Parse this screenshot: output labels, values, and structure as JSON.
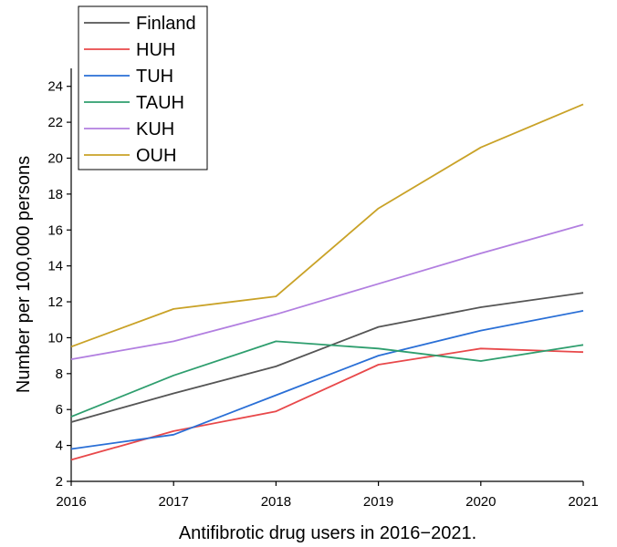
{
  "chart_data": {
    "type": "line",
    "title": "",
    "xlabel": "Antifibrotic drug users in 2016−2021.",
    "ylabel": "Number per 100,000 persons",
    "x": [
      2016,
      2017,
      2018,
      2019,
      2020,
      2021
    ],
    "x_tick_labels": [
      "2016",
      "2017",
      "2018",
      "2019",
      "2020",
      "2021"
    ],
    "y_ticks": [
      2,
      4,
      6,
      8,
      10,
      12,
      14,
      16,
      18,
      20,
      22,
      24
    ],
    "y_tick_labels": [
      "2",
      "4",
      "6",
      "8",
      "10",
      "12",
      "14",
      "16",
      "18",
      "20",
      "22",
      "24"
    ],
    "xlim": [
      2016,
      2021
    ],
    "ylim": [
      2,
      25
    ],
    "grid": false,
    "legend_position": "top-left",
    "series": [
      {
        "name": "Finland",
        "color": "#555555",
        "values": [
          5.3,
          6.9,
          8.4,
          10.6,
          11.7,
          12.5
        ]
      },
      {
        "name": "HUH",
        "color": "#e8484a",
        "values": [
          3.2,
          4.8,
          5.9,
          8.5,
          9.4,
          9.2
        ]
      },
      {
        "name": "TUH",
        "color": "#2a6fd6",
        "values": [
          3.8,
          4.6,
          6.8,
          9.0,
          10.4,
          11.5
        ]
      },
      {
        "name": "TAUH",
        "color": "#2e9e6e",
        "values": [
          5.6,
          7.9,
          9.8,
          9.4,
          8.7,
          9.6
        ]
      },
      {
        "name": "KUH",
        "color": "#b27fe0",
        "values": [
          8.8,
          9.8,
          11.3,
          13.0,
          14.7,
          16.3
        ]
      },
      {
        "name": "OUH",
        "color": "#c9a227",
        "values": [
          9.5,
          11.6,
          12.3,
          17.2,
          20.6,
          23.0
        ]
      }
    ]
  }
}
